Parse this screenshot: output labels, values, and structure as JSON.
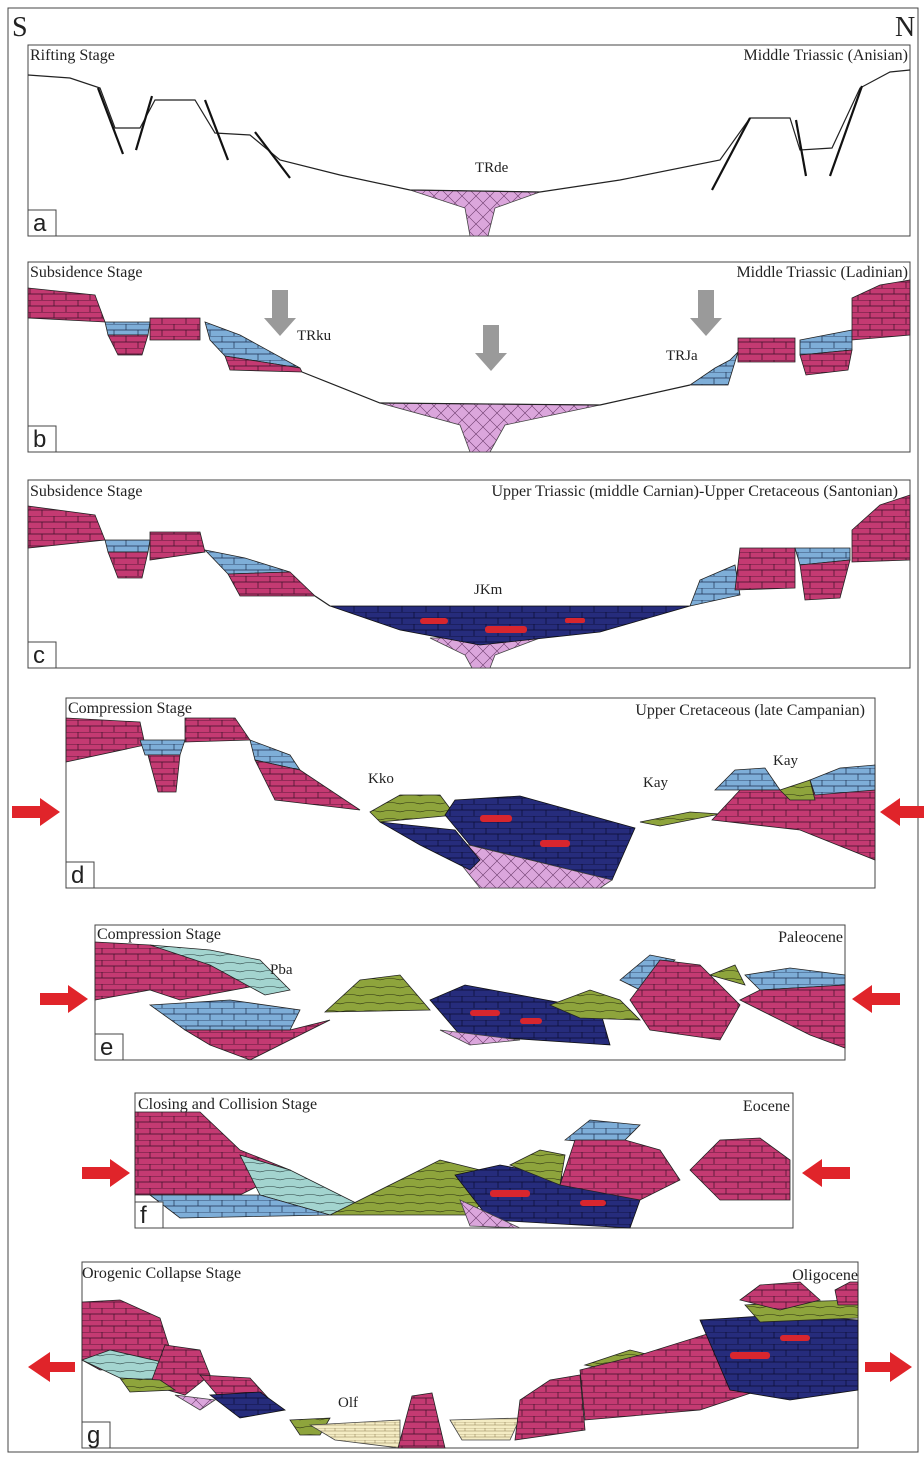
{
  "header": {
    "left": "S",
    "right": "N"
  },
  "panels": [
    {
      "letter": "a",
      "stage": "Rifting Stage",
      "age": "Middle Triassic (Anisian)",
      "labels": [
        "TRde"
      ]
    },
    {
      "letter": "b",
      "stage": "Subsidence Stage",
      "age": "Middle Triassic (Ladinian)",
      "labels": [
        "TRku",
        "TRJa"
      ]
    },
    {
      "letter": "c",
      "stage": "Subsidence Stage",
      "age": "Upper Triassic (middle Carnian)-Upper Cretaceous (Santonian)",
      "labels": [
        "JKm"
      ]
    },
    {
      "letter": "d",
      "stage": "Compression Stage",
      "age": "Upper Cretaceous (late Campanian)",
      "labels": [
        "Kko",
        "Kay",
        "Kay"
      ]
    },
    {
      "letter": "e",
      "stage": "Compression Stage",
      "age": "Paleocene",
      "labels": [
        "Pba"
      ]
    },
    {
      "letter": "f",
      "stage": "Closing and Collision Stage",
      "age": "Eocene",
      "labels": []
    },
    {
      "letter": "g",
      "stage": "Orogenic Collapse Stage",
      "age": "Oligocene",
      "labels": [
        "Olf"
      ]
    }
  ]
}
